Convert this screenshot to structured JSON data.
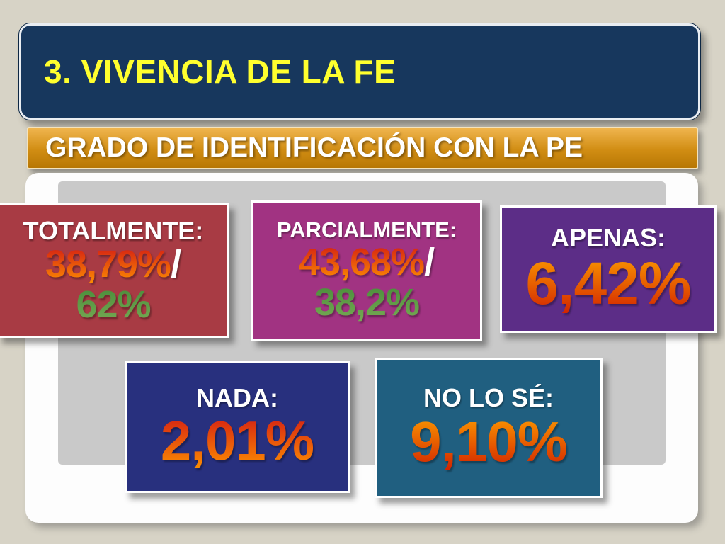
{
  "slide": {
    "title": "3. VIVENCIA DE LA FE",
    "banner": "GRADO DE IDENTIFICACIÓN CON LA PE"
  },
  "colors": {
    "page_background": "#d7d3c6",
    "title_box_bg": "#17375d",
    "title_text": "#ffff2e",
    "banner_gradient": "linear-gradient(180deg,#f0b54e,#d18d13 55%,#b87704)",
    "banner_text": "#ffffff",
    "panel_bg": "#fdfdfd",
    "inner_rect_bg": "#c9c9c9",
    "gradients": {
      "red_orange": [
        "#d01515",
        "#ff9300"
      ],
      "orange_red": [
        "#ffa200",
        "#cf1d00"
      ],
      "green": [
        "#468b39",
        "#79ab55"
      ]
    }
  },
  "boxes": [
    {
      "label": "TOTALMENTE:",
      "value": "38,79%",
      "separator": "/",
      "value2": "62%",
      "bg": "#a83b44"
    },
    {
      "label": "PARCIALMENTE:",
      "value": "43,68%",
      "separator": "/",
      "value2": "38,2%",
      "bg": "#a13382"
    },
    {
      "label": "APENAS:",
      "value": "6,42%",
      "bg": "#5c2d87"
    },
    {
      "label": "NADA:",
      "value": "2,01%",
      "bg": "#28307e"
    },
    {
      "label": "NO LO SÉ:",
      "value": "9,10%",
      "bg": "#205f80"
    }
  ]
}
